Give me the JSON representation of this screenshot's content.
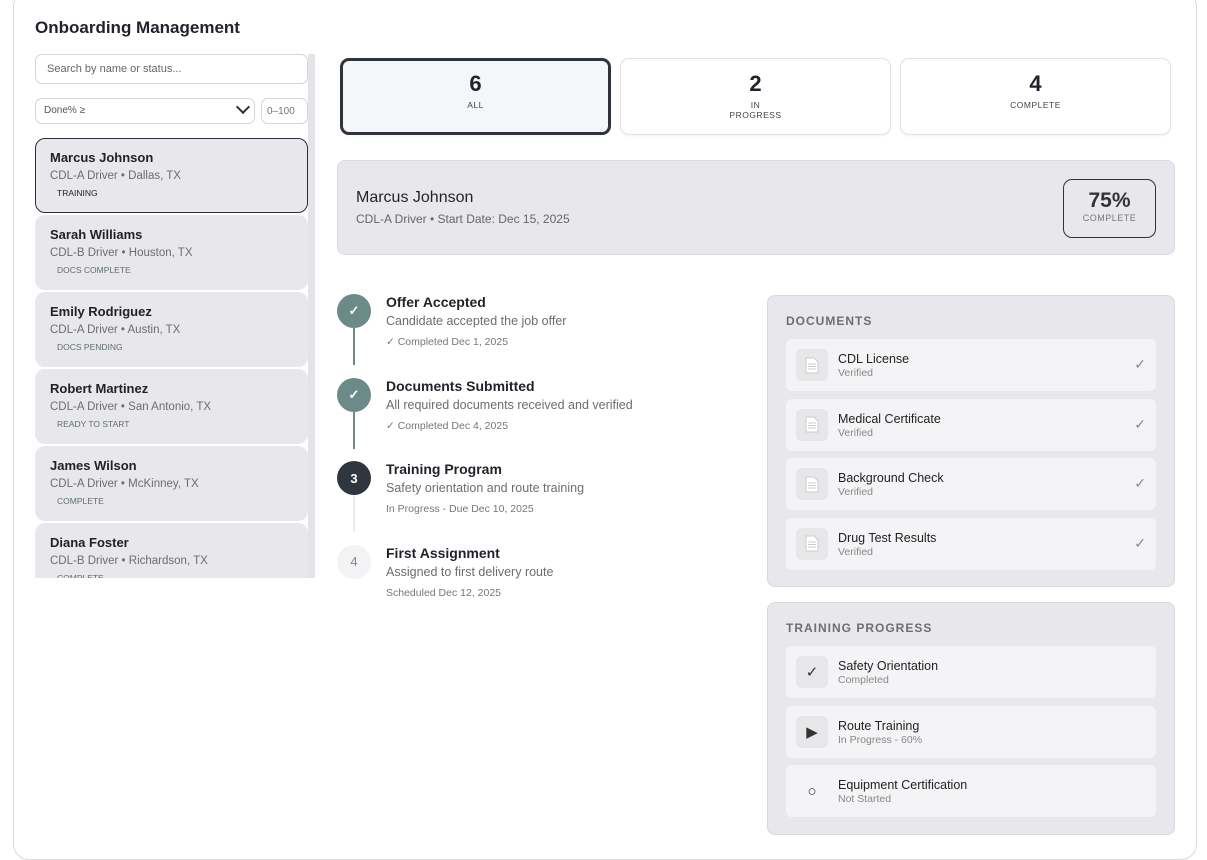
{
  "title": "Onboarding Management",
  "search": {
    "placeholder": "Search by name or status..."
  },
  "filter": {
    "select_value": "Done% ≥",
    "range_placeholder": "0–100"
  },
  "candidates": [
    {
      "name": "Marcus Johnson",
      "role": "CDL-A Driver • Dallas, TX",
      "status": "Training",
      "selected": true
    },
    {
      "name": "Sarah Williams",
      "role": "CDL-B Driver • Houston, TX",
      "status": "Docs Complete"
    },
    {
      "name": "Emily Rodriguez",
      "role": "CDL-A Driver • Austin, TX",
      "status": "Docs Pending"
    },
    {
      "name": "Robert Martinez",
      "role": "CDL-A Driver • San Antonio, TX",
      "status": "Ready to Start"
    },
    {
      "name": "James Wilson",
      "role": "CDL-A Driver • McKinney, TX",
      "status": "Complete"
    },
    {
      "name": "Diana Foster",
      "role": "CDL-B Driver • Richardson, TX",
      "status": "Complete"
    }
  ],
  "stats": [
    {
      "value": "6",
      "label": "ALL",
      "selected": true
    },
    {
      "value": "2",
      "label": "IN PROGRESS"
    },
    {
      "value": "4",
      "label": "COMPLETE"
    }
  ],
  "detail": {
    "name": "Marcus Johnson",
    "subtitle": "CDL-A Driver • Start Date: Dec 15, 2025",
    "percent": "75%",
    "percent_label": "COMPLETE"
  },
  "steps": [
    {
      "marker": "✓",
      "title": "Offer Accepted",
      "desc": "Candidate accepted the job offer",
      "meta": "✓ Completed Dec 1, 2025",
      "state": "done"
    },
    {
      "marker": "✓",
      "title": "Documents Submitted",
      "desc": "All required documents received and verified",
      "meta": "✓ Completed Dec 4, 2025",
      "state": "done"
    },
    {
      "marker": "3",
      "title": "Training Program",
      "desc": "Safety orientation and route training",
      "meta": "In Progress - Due Dec 10, 2025",
      "state": "current"
    },
    {
      "marker": "4",
      "title": "First Assignment",
      "desc": "Assigned to first delivery route",
      "meta": "Scheduled Dec 12, 2025",
      "state": "pending"
    }
  ],
  "documents": {
    "heading": "DOCUMENTS",
    "items": [
      {
        "name": "CDL License",
        "status": "Verified",
        "icon": "document-icon"
      },
      {
        "name": "Medical Certificate",
        "status": "Verified",
        "icon": "document-icon"
      },
      {
        "name": "Background Check",
        "status": "Verified",
        "icon": "document-icon"
      },
      {
        "name": "Drug Test Results",
        "status": "Verified",
        "icon": "document-icon"
      }
    ]
  },
  "training": {
    "heading": "TRAINING PROGRESS",
    "items": [
      {
        "name": "Safety Orientation",
        "status": "Completed",
        "glyph": "✓",
        "icon": "check-icon"
      },
      {
        "name": "Route Training",
        "status": "In Progress - 60%",
        "glyph": "▶",
        "icon": "play-icon"
      },
      {
        "name": "Equipment Certification",
        "status": "Not Started",
        "glyph": "○",
        "icon": "circle-icon"
      }
    ]
  },
  "colors": {
    "done": "#6b8a88",
    "current": "#2f363f",
    "pending": "#f3f3f5"
  }
}
